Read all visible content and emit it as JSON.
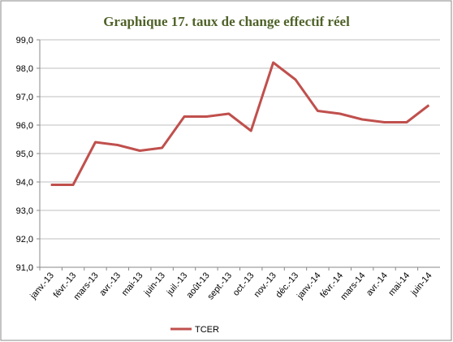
{
  "chart_data": {
    "type": "line",
    "title": "Graphique 17. taux de change effectif réel",
    "categories": [
      "janv.-13",
      "févr.-13",
      "mars-13",
      "avr.-13",
      "mai-13",
      "juin-13",
      "juil.-13",
      "août-13",
      "sept.-13",
      "oct.-13",
      "nov.-13",
      "déc.-13",
      "janv.-14",
      "févr.-14",
      "mars-14",
      "avr.-14",
      "mai-14",
      "juin-14"
    ],
    "series": [
      {
        "name": "TCER",
        "color": "#c0504d",
        "values": [
          93.9,
          93.9,
          95.4,
          95.3,
          95.1,
          95.2,
          96.3,
          96.3,
          96.4,
          95.8,
          98.2,
          97.6,
          96.5,
          96.4,
          96.2,
          96.1,
          96.1,
          96.7
        ]
      }
    ],
    "ylim": [
      91,
      99
    ],
    "yticks": [
      {
        "value": 91,
        "label": "91,0"
      },
      {
        "value": 92,
        "label": "92,0"
      },
      {
        "value": 93,
        "label": "93,0"
      },
      {
        "value": 94,
        "label": "94,0"
      },
      {
        "value": 95,
        "label": "95,0"
      },
      {
        "value": 96,
        "label": "96,0"
      },
      {
        "value": 97,
        "label": "97,0"
      },
      {
        "value": 98,
        "label": "98,0"
      },
      {
        "value": 99,
        "label": "99,0"
      }
    ],
    "grid": true,
    "legend": "bottom"
  }
}
